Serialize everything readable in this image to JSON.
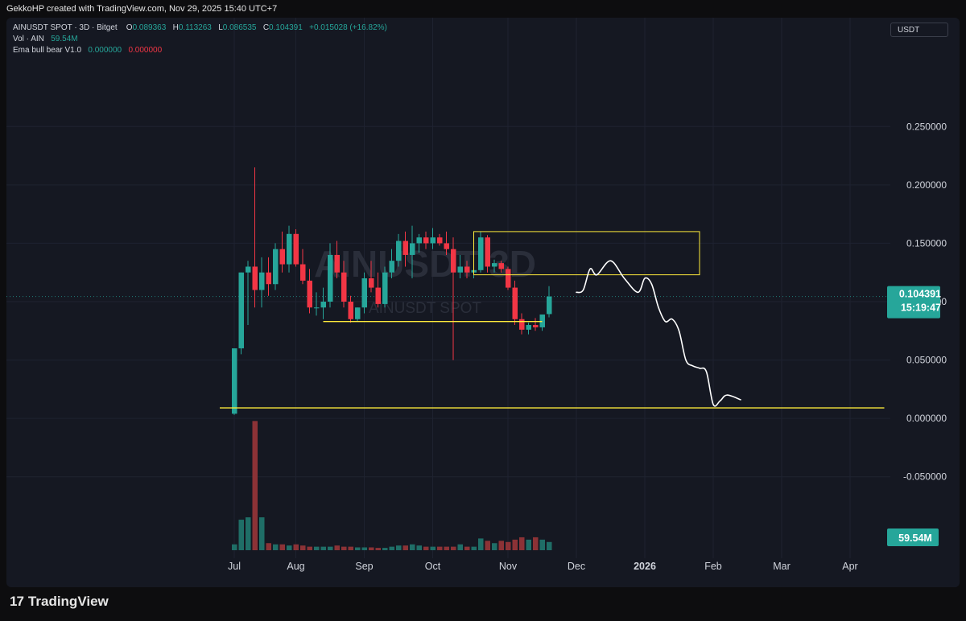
{
  "header": {
    "credit": "GekkoHP created with TradingView.com, Nov 29, 2025 15:40 UTC+7"
  },
  "legend": {
    "symbol": "AINUSDT SPOT · 3D · Bitget",
    "o_label": "O",
    "o_value": "0.089363",
    "h_label": "H",
    "h_value": "0.113263",
    "l_label": "L",
    "l_value": "0.086535",
    "c_label": "C",
    "c_value": "0.104391",
    "change": "+0.015028 (+16.82%)",
    "vol_label": "Vol · AIN",
    "vol_value": "59.54M",
    "ema_label": "Ema bull bear V1.0",
    "ema_value_1": "0.000000",
    "ema_value_2": "0.000000"
  },
  "currency_button": "USDT",
  "watermark": {
    "main": "AINUSDT 3D",
    "sub": "AINUSDT SPOT"
  },
  "price_badge": {
    "price": "0.104391",
    "countdown": "15:19:47"
  },
  "volume_badge": "59.54M",
  "footer": {
    "brand": "TradingView",
    "mark": "17"
  },
  "colors": {
    "up": "#26a69a",
    "down": "#f23645",
    "vol_up": "#1f6e67",
    "vol_down": "#8c3236",
    "annotation": "#ffeb3b",
    "drawing": "#ffffff",
    "badge": "#26a69a"
  },
  "chart_data": {
    "type": "candlestick",
    "symbol": "AINUSDT",
    "timeframe": "3D",
    "ylim": [
      -0.075,
      0.275
    ],
    "y_ticks": [
      0.25,
      0.2,
      0.15,
      0.1,
      0.05,
      0.0,
      -0.05
    ],
    "y_tick_labels": [
      "0.250000",
      "0.200000",
      "0.150000",
      "0.100000",
      "0.050000",
      "0.000000",
      "-0.050000"
    ],
    "x_tick_labels": [
      "Jul",
      "Aug",
      "Sep",
      "Oct",
      "Nov",
      "Dec",
      "2026",
      "Feb",
      "Mar",
      "Apr"
    ],
    "x_tick_bars": [
      0,
      9,
      19,
      29,
      40,
      50,
      60,
      70,
      80,
      90
    ],
    "last_price": 0.104391,
    "candles": [
      [
        0.004,
        0.06,
        0.003,
        0.06,
        2.5
      ],
      [
        0.06,
        0.125,
        0.055,
        0.125,
        13
      ],
      [
        0.125,
        0.135,
        0.08,
        0.13,
        14
      ],
      [
        0.13,
        0.215,
        0.095,
        0.11,
        55
      ],
      [
        0.11,
        0.138,
        0.095,
        0.125,
        14
      ],
      [
        0.125,
        0.138,
        0.105,
        0.115,
        3
      ],
      [
        0.115,
        0.15,
        0.11,
        0.145,
        2.5
      ],
      [
        0.145,
        0.16,
        0.125,
        0.132,
        2.5
      ],
      [
        0.132,
        0.165,
        0.125,
        0.158,
        2
      ],
      [
        0.158,
        0.162,
        0.13,
        0.132,
        2.5
      ],
      [
        0.132,
        0.145,
        0.115,
        0.118,
        2
      ],
      [
        0.118,
        0.128,
        0.09,
        0.095,
        1.5
      ],
      [
        0.095,
        0.108,
        0.088,
        0.095,
        1.5
      ],
      [
        0.095,
        0.112,
        0.085,
        0.1,
        1.5
      ],
      [
        0.1,
        0.15,
        0.095,
        0.14,
        1.5
      ],
      [
        0.14,
        0.152,
        0.12,
        0.125,
        2
      ],
      [
        0.125,
        0.135,
        0.095,
        0.1,
        1.5
      ],
      [
        0.1,
        0.105,
        0.082,
        0.085,
        1.5
      ],
      [
        0.085,
        0.095,
        0.083,
        0.095,
        1.2
      ],
      [
        0.095,
        0.125,
        0.09,
        0.12,
        1.2
      ],
      [
        0.12,
        0.135,
        0.108,
        0.112,
        1.2
      ],
      [
        0.112,
        0.125,
        0.095,
        0.098,
        1
      ],
      [
        0.098,
        0.13,
        0.095,
        0.125,
        1
      ],
      [
        0.125,
        0.145,
        0.12,
        0.135,
        1.5
      ],
      [
        0.135,
        0.158,
        0.13,
        0.152,
        2
      ],
      [
        0.152,
        0.16,
        0.13,
        0.14,
        2
      ],
      [
        0.14,
        0.165,
        0.12,
        0.15,
        2.5
      ],
      [
        0.15,
        0.158,
        0.142,
        0.155,
        2
      ],
      [
        0.155,
        0.16,
        0.145,
        0.15,
        1.5
      ],
      [
        0.15,
        0.163,
        0.145,
        0.155,
        1.5
      ],
      [
        0.155,
        0.158,
        0.148,
        0.15,
        1.5
      ],
      [
        0.15,
        0.16,
        0.14,
        0.145,
        1.5
      ],
      [
        0.145,
        0.155,
        0.05,
        0.125,
        1.5
      ],
      [
        0.125,
        0.14,
        0.12,
        0.13,
        2.5
      ],
      [
        0.13,
        0.135,
        0.12,
        0.125,
        1.5
      ],
      [
        0.125,
        0.132,
        0.12,
        0.127,
        1.5
      ],
      [
        0.127,
        0.16,
        0.125,
        0.155,
        5
      ],
      [
        0.155,
        0.157,
        0.125,
        0.13,
        4
      ],
      [
        0.13,
        0.136,
        0.125,
        0.133,
        3
      ],
      [
        0.133,
        0.135,
        0.125,
        0.128,
        4
      ],
      [
        0.128,
        0.13,
        0.11,
        0.112,
        3.5
      ],
      [
        0.112,
        0.118,
        0.08,
        0.085,
        4.5
      ],
      [
        0.085,
        0.09,
        0.072,
        0.076,
        5.5
      ],
      [
        0.076,
        0.082,
        0.072,
        0.08,
        4.5
      ],
      [
        0.08,
        0.086,
        0.075,
        0.078,
        5.5
      ],
      [
        0.078,
        0.088,
        0.075,
        0.089,
        4.5
      ],
      [
        0.089363,
        0.113263,
        0.086535,
        0.104391,
        3.5
      ]
    ],
    "annotations": {
      "supply_box": {
        "bar_start": 35,
        "bar_end": 68,
        "price_top": 0.16,
        "price_bottom": 0.123
      },
      "support_line_1": {
        "bar_start": 13,
        "bar_end": 45,
        "price": 0.083
      },
      "support_line_2": {
        "bar_start": -2,
        "bar_end": 95,
        "price": 0.009
      },
      "projection_path": [
        [
          50,
          0.108
        ],
        [
          51,
          0.11
        ],
        [
          52,
          0.128
        ],
        [
          53,
          0.123
        ],
        [
          55,
          0.135
        ],
        [
          57,
          0.12
        ],
        [
          59,
          0.108
        ],
        [
          60,
          0.12
        ],
        [
          61,
          0.115
        ],
        [
          62,
          0.095
        ],
        [
          63,
          0.083
        ],
        [
          64,
          0.085
        ],
        [
          65,
          0.075
        ],
        [
          66,
          0.05
        ],
        [
          67,
          0.045
        ],
        [
          68,
          0.043
        ],
        [
          69,
          0.04
        ],
        [
          70,
          0.012
        ],
        [
          71,
          0.015
        ],
        [
          72,
          0.02
        ],
        [
          74,
          0.016
        ]
      ]
    }
  }
}
